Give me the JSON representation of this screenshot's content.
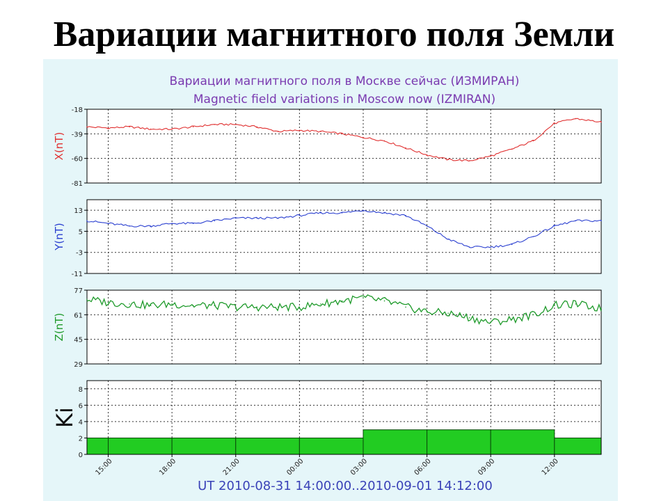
{
  "slide_title": "Вариации магнитного поля Земли",
  "chart_data": {
    "type": "line",
    "title": "Вариации магнитного поля в Москве сейчас (ИЗМИРАН)",
    "subtitle": "Magnetic field variations in Moscow now (IZMIRAN)",
    "xlabel": "UT 2010-08-31 14:00:00..2010-09-01 14:12:00",
    "x_ticks": [
      "15:00",
      "18:00",
      "21:00",
      "00:00",
      "03:00",
      "06:00",
      "09:00",
      "12:00"
    ],
    "x_tick_hours": [
      1,
      4,
      7,
      10,
      13,
      16,
      19,
      22
    ],
    "x_range_hours": [
      0,
      24.2
    ],
    "grid": true,
    "colors": {
      "X": "#e03030",
      "Y": "#2a3fd0",
      "Z": "#1e9a2a",
      "Ki": "#22cc22",
      "title": "#7a3ab0",
      "xlabel": "#3a42b8"
    },
    "panels": [
      {
        "id": "X",
        "ylabel": "X(nT)",
        "ylim": [
          -81,
          -18
        ],
        "yticks": [
          -18,
          -39,
          -60,
          -81
        ],
        "hours": [
          0,
          1,
          2,
          3,
          4,
          5,
          6,
          7,
          8,
          9,
          10,
          11,
          12,
          13,
          14,
          15,
          16,
          17,
          18,
          19,
          20,
          21,
          22,
          23,
          24.2
        ],
        "values": [
          -33,
          -34,
          -33,
          -35,
          -35,
          -33,
          -31,
          -31,
          -33,
          -37,
          -36,
          -37,
          -39,
          -42,
          -45,
          -51,
          -57,
          -61,
          -62,
          -58,
          -52,
          -45,
          -30,
          -26,
          -29
        ]
      },
      {
        "id": "Y",
        "ylabel": "Y(nT)",
        "ylim": [
          -11,
          17
        ],
        "yticks": [
          13,
          5,
          -3,
          -11
        ],
        "hours": [
          0,
          1,
          2,
          3,
          4,
          5,
          6,
          7,
          8,
          9,
          10,
          11,
          12,
          13,
          14,
          15,
          16,
          17,
          18,
          19,
          20,
          21,
          22,
          23,
          24.2
        ],
        "values": [
          9,
          8,
          7,
          7,
          8,
          8,
          9,
          10,
          10,
          10,
          11,
          12,
          12,
          13,
          12,
          11,
          7,
          2,
          -1,
          -1,
          0,
          3,
          7,
          9,
          9
        ]
      },
      {
        "id": "Z",
        "ylabel": "Z(nT)",
        "ylim": [
          29,
          77
        ],
        "yticks": [
          77,
          61,
          45,
          29
        ],
        "hours": [
          0,
          1,
          2,
          3,
          4,
          5,
          6,
          7,
          8,
          9,
          10,
          11,
          12,
          13,
          14,
          15,
          16,
          17,
          18,
          19,
          20,
          21,
          22,
          23,
          24.2
        ],
        "values": [
          71,
          69,
          68,
          67,
          68,
          67,
          67,
          66,
          66,
          66,
          66,
          68,
          70,
          72,
          70,
          66,
          63,
          62,
          59,
          56,
          58,
          61,
          67,
          68,
          65
        ]
      }
    ],
    "ki": {
      "ylabel": "Ki",
      "ylim": [
        0,
        9
      ],
      "yticks": [
        0,
        2,
        4,
        6,
        8
      ],
      "intervals": [
        {
          "start": 0,
          "end": 1,
          "value": 2
        },
        {
          "start": 1,
          "end": 4,
          "value": 2
        },
        {
          "start": 4,
          "end": 7,
          "value": 2
        },
        {
          "start": 7,
          "end": 10,
          "value": 2
        },
        {
          "start": 10,
          "end": 13,
          "value": 2
        },
        {
          "start": 13,
          "end": 16,
          "value": 3
        },
        {
          "start": 16,
          "end": 19,
          "value": 3
        },
        {
          "start": 19,
          "end": 22,
          "value": 3
        },
        {
          "start": 22,
          "end": 24.2,
          "value": 2
        }
      ]
    }
  }
}
